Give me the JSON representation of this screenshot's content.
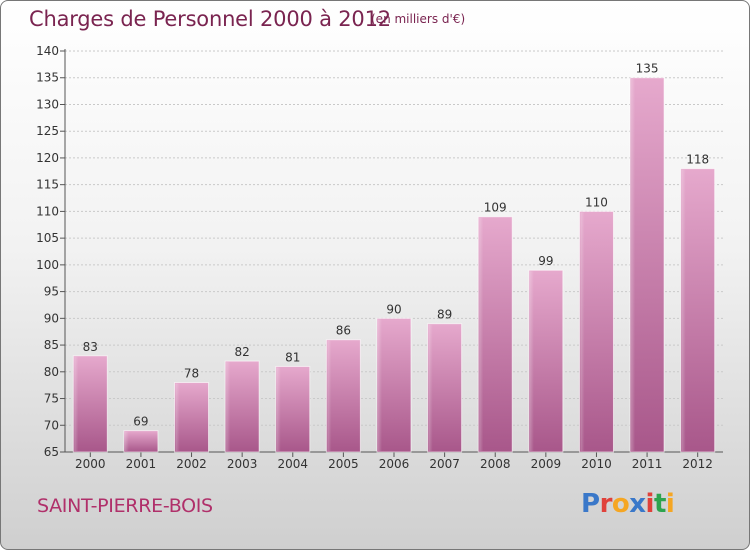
{
  "header": {
    "title": "Charges de Personnel 2000 à 2012",
    "subtitle": "(en milliers d'€)"
  },
  "footer": {
    "town": "SAINT-PIERRE-BOIS",
    "logo": "Proxiti"
  },
  "logo_colors": [
    "#3a78c9",
    "#e0413a",
    "#f5a623",
    "#3a78c9",
    "#e0413a",
    "#2da44e",
    "#f5a623"
  ],
  "colors": {
    "bar_light": "#e6a9cd",
    "bar_dark": "#a8578a",
    "title": "#7a2450",
    "town": "#b0306a"
  },
  "chart_data": {
    "type": "bar",
    "categories": [
      "2000",
      "2001",
      "2002",
      "2003",
      "2004",
      "2005",
      "2006",
      "2007",
      "2008",
      "2009",
      "2010",
      "2011",
      "2012"
    ],
    "values": [
      83,
      69,
      78,
      82,
      81,
      86,
      90,
      89,
      109,
      99,
      110,
      135,
      118
    ],
    "ylim": [
      65,
      140
    ],
    "yticks": [
      65,
      70,
      75,
      80,
      85,
      90,
      95,
      100,
      105,
      110,
      115,
      120,
      125,
      130,
      135,
      140
    ],
    "grid": true
  }
}
